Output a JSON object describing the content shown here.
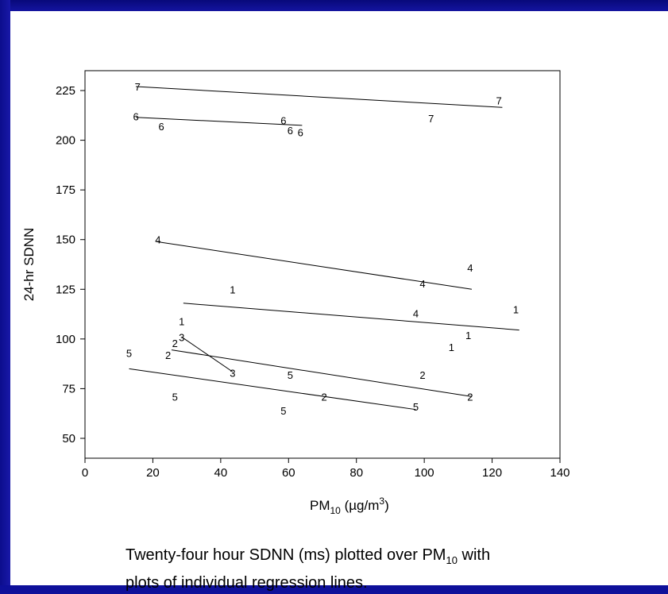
{
  "chart_data": {
    "type": "scatter",
    "title": "",
    "xlabel": "PM10 (µg/m3)",
    "xlabel_parts": {
      "pm": "PM",
      "sub": "10",
      "unit_open": " (",
      "mu": "µ",
      "g": "g/m",
      "sup": "3",
      "close": ")"
    },
    "ylabel": "24-hr SDNN",
    "xlim": [
      0,
      140
    ],
    "ylim": [
      40,
      235
    ],
    "xticks": [
      0,
      20,
      40,
      60,
      80,
      100,
      120,
      140
    ],
    "yticks": [
      50,
      75,
      100,
      125,
      150,
      175,
      200,
      225
    ],
    "grid": false,
    "points": [
      {
        "subject": "7",
        "x": 15.5,
        "y": 227
      },
      {
        "subject": "7",
        "x": 122,
        "y": 220
      },
      {
        "subject": "7",
        "x": 102,
        "y": 211
      },
      {
        "subject": "6",
        "x": 15,
        "y": 212
      },
      {
        "subject": "6",
        "x": 22.5,
        "y": 207
      },
      {
        "subject": "6",
        "x": 58.5,
        "y": 210
      },
      {
        "subject": "6",
        "x": 60.5,
        "y": 205
      },
      {
        "subject": "6",
        "x": 63.5,
        "y": 204
      },
      {
        "subject": "4",
        "x": 21.5,
        "y": 150
      },
      {
        "subject": "4",
        "x": 113.5,
        "y": 136
      },
      {
        "subject": "4",
        "x": 99.5,
        "y": 128
      },
      {
        "subject": "4",
        "x": 97.5,
        "y": 113
      },
      {
        "subject": "1",
        "x": 43.5,
        "y": 125
      },
      {
        "subject": "1",
        "x": 127,
        "y": 115
      },
      {
        "subject": "1",
        "x": 28.5,
        "y": 109
      },
      {
        "subject": "1",
        "x": 113,
        "y": 102
      },
      {
        "subject": "1",
        "x": 108,
        "y": 96
      },
      {
        "subject": "3",
        "x": 28.5,
        "y": 101
      },
      {
        "subject": "3",
        "x": 43.5,
        "y": 83
      },
      {
        "subject": "2",
        "x": 26.5,
        "y": 98
      },
      {
        "subject": "2",
        "x": 24.5,
        "y": 92
      },
      {
        "subject": "2",
        "x": 99.5,
        "y": 82
      },
      {
        "subject": "2",
        "x": 70.5,
        "y": 71
      },
      {
        "subject": "2",
        "x": 113.5,
        "y": 71
      },
      {
        "subject": "5",
        "x": 13,
        "y": 93
      },
      {
        "subject": "5",
        "x": 60.5,
        "y": 82
      },
      {
        "subject": "5",
        "x": 26.5,
        "y": 71
      },
      {
        "subject": "5",
        "x": 97.5,
        "y": 66
      },
      {
        "subject": "5",
        "x": 58.5,
        "y": 64
      }
    ],
    "regression_lines": [
      {
        "subject": "7",
        "x": [
          15,
          123
        ],
        "y": [
          227,
          216.5
        ]
      },
      {
        "subject": "6",
        "x": [
          15,
          64
        ],
        "y": [
          211.5,
          207.5
        ]
      },
      {
        "subject": "4",
        "x": [
          21,
          114
        ],
        "y": [
          149,
          125
        ]
      },
      {
        "subject": "1",
        "x": [
          29,
          128
        ],
        "y": [
          118,
          104.5
        ]
      },
      {
        "subject": "3",
        "x": [
          28.5,
          43.5
        ],
        "y": [
          101,
          83.5
        ]
      },
      {
        "subject": "2",
        "x": [
          25.5,
          114
        ],
        "y": [
          94.5,
          71
        ]
      },
      {
        "subject": "5",
        "x": [
          13,
          97.5
        ],
        "y": [
          85,
          64.5
        ]
      }
    ]
  },
  "caption": {
    "line1_start": "Twenty-four hour SDNN (ms) plotted over PM",
    "line1_sub": "10",
    "line1_end": " with",
    "line2": "plots of individual regression lines."
  },
  "colors": {
    "background_band": "#1515a0",
    "slide": "#ffffff",
    "ink": "#000000"
  }
}
